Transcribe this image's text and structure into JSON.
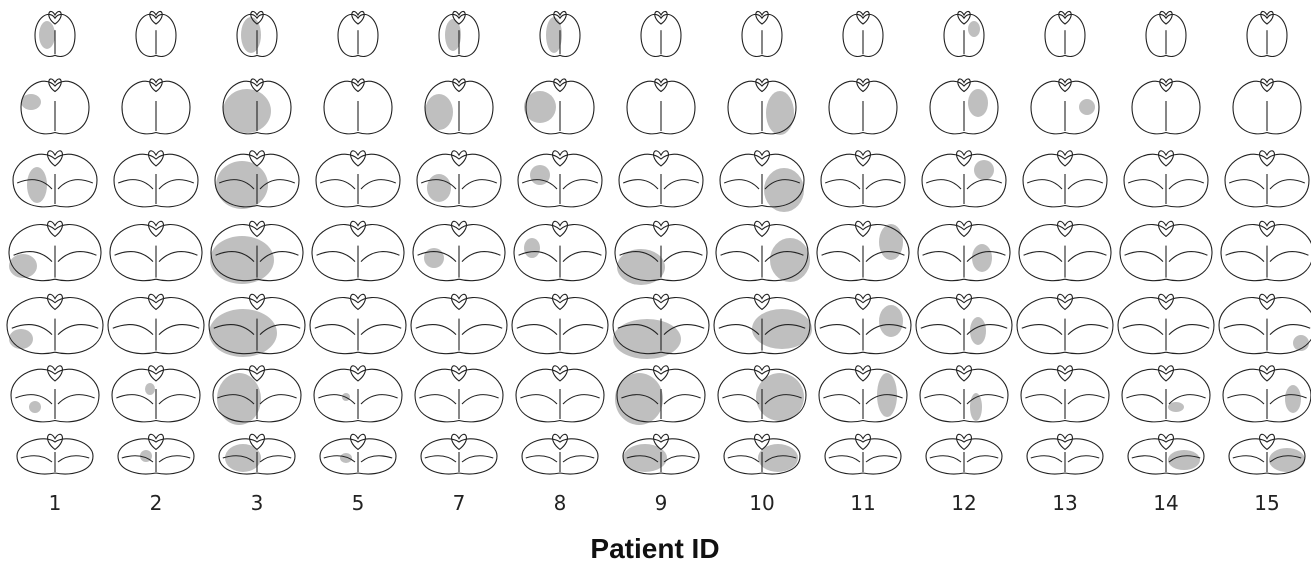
{
  "patient_ids": [
    "1",
    "2",
    "3",
    "5",
    "7",
    "8",
    "9",
    "10",
    "11",
    "12",
    "13",
    "14",
    "15"
  ],
  "axis_label": "Patient ID"
}
